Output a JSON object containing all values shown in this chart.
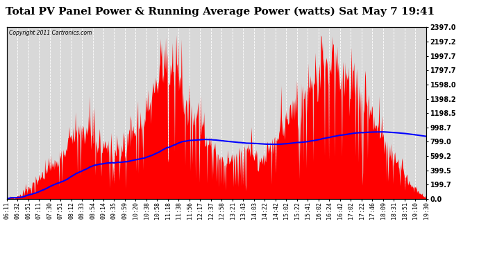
{
  "title": "Total PV Panel Power & Running Average Power (watts) Sat May 7 19:41",
  "copyright": "Copyright 2011 Cartronics.com",
  "ylabel_right": [
    "2397.0",
    "2197.2",
    "1997.7",
    "1797.7",
    "1598.0",
    "1398.2",
    "1198.5",
    "998.7",
    "799.0",
    "599.2",
    "399.5",
    "199.7",
    "0.0"
  ],
  "ymax": 2397.0,
  "ymin": 0.0,
  "yticks": [
    2397.0,
    2197.2,
    1997.7,
    1797.7,
    1598.0,
    1398.2,
    1198.5,
    998.7,
    799.0,
    599.2,
    399.5,
    199.7,
    0.0
  ],
  "background_color": "#ffffff",
  "plot_bg_color": "#d8d8d8",
  "fill_color": "#ff0000",
  "line_color": "#0000ff",
  "title_fontsize": 11,
  "x_labels": [
    "06:11",
    "06:32",
    "06:51",
    "07:11",
    "07:30",
    "07:51",
    "08:12",
    "08:33",
    "08:54",
    "09:14",
    "09:35",
    "09:59",
    "10:20",
    "10:38",
    "10:58",
    "11:18",
    "11:38",
    "11:56",
    "12:17",
    "12:37",
    "12:58",
    "13:21",
    "13:43",
    "14:03",
    "14:22",
    "14:42",
    "15:02",
    "15:22",
    "15:41",
    "16:02",
    "16:24",
    "16:42",
    "17:02",
    "17:22",
    "17:46",
    "18:09",
    "18:31",
    "18:51",
    "19:10",
    "19:30"
  ]
}
